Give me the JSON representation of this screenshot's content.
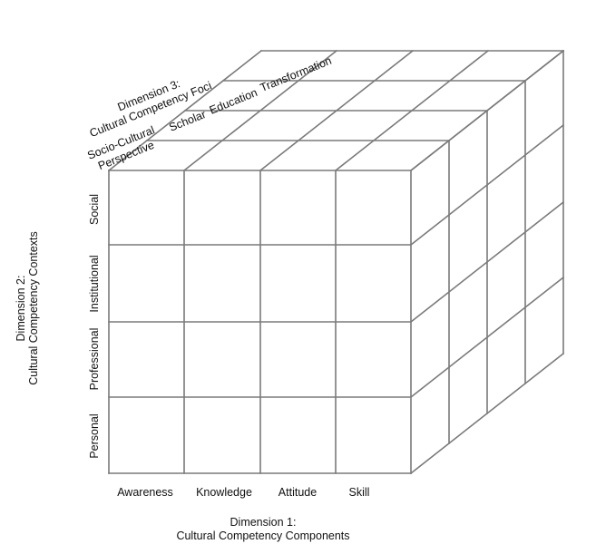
{
  "dimension1": {
    "heading": "Dimension 1:",
    "title": "Cultural Competency Components",
    "components": [
      "Awareness",
      "Knowledge",
      "Attitude",
      "Skill"
    ]
  },
  "dimension2": {
    "heading": "Dimension 2:",
    "title": "Cultural Competency Contexts",
    "contexts": [
      "Social",
      "Institutional",
      "Professional",
      "Personal"
    ]
  },
  "dimension3": {
    "heading": "Dimension 3:",
    "title": "Cultural Competency Foci",
    "foci": [
      {
        "line1": "Socio-Cultural",
        "line2": "Perspective"
      },
      {
        "line1": "Scholar",
        "line2": ""
      },
      {
        "line1": "Education",
        "line2": ""
      },
      {
        "line1": "Transformation",
        "line2": ""
      }
    ]
  },
  "colors": {
    "grid": "#7a7a7a",
    "text": "#111111",
    "background": "#ffffff"
  }
}
